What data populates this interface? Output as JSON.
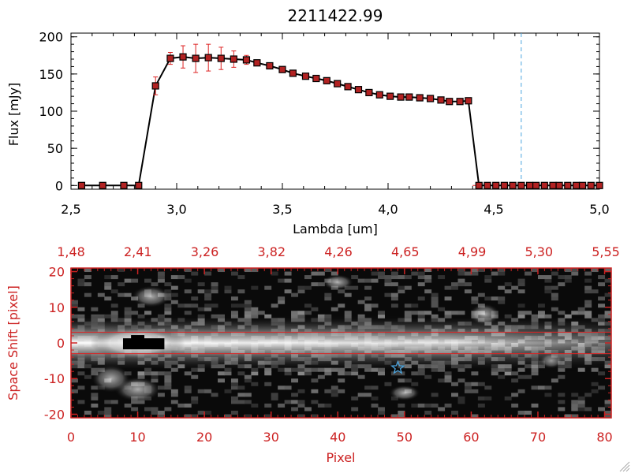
{
  "chart_data": [
    {
      "type": "line",
      "title": "2211422.99",
      "xlabel": "Lambda [um]",
      "ylabel": "Flux [mJy]",
      "xlim": [
        2.5,
        5.0
      ],
      "ylim": [
        -5,
        205
      ],
      "x_ticks": [
        "2.5",
        "3.0",
        "3.5",
        "4.0",
        "4.5",
        "5.0"
      ],
      "y_ticks": [
        "0",
        "50",
        "100",
        "150",
        "200"
      ],
      "grid": false,
      "series_color": "#000000",
      "marker_color": "#b22222",
      "errorbar_color": "#dd2222",
      "vline": {
        "x": 4.63,
        "color": "#4da6e0",
        "style": "dashed"
      },
      "hline": {
        "y": 0,
        "color": "#dd2222",
        "style": "dashed"
      },
      "x": [
        2.55,
        2.65,
        2.75,
        2.82,
        2.9,
        2.97,
        3.03,
        3.09,
        3.15,
        3.21,
        3.27,
        3.33,
        3.38,
        3.44,
        3.5,
        3.55,
        3.61,
        3.66,
        3.71,
        3.76,
        3.81,
        3.86,
        3.91,
        3.96,
        4.01,
        4.06,
        4.1,
        4.15,
        4.2,
        4.25,
        4.29,
        4.34,
        4.38,
        4.43,
        4.47,
        4.51,
        4.55,
        4.59,
        4.63,
        4.67,
        4.7,
        4.74,
        4.78,
        4.81,
        4.85,
        4.89,
        4.92,
        4.96,
        5.0
      ],
      "y": [
        0,
        0,
        0,
        0,
        134,
        171,
        173,
        171,
        172,
        171,
        170,
        169,
        165,
        161,
        156,
        151,
        147,
        144,
        141,
        137,
        133,
        129,
        125,
        122,
        120,
        119,
        119,
        118,
        117,
        115,
        113,
        113,
        114,
        0,
        0,
        0,
        0,
        0,
        0,
        0,
        0,
        0,
        0,
        0,
        0,
        0,
        0,
        0,
        0
      ],
      "yerr": [
        0,
        0,
        0,
        0,
        12,
        8,
        15,
        19,
        18,
        15,
        11,
        6,
        4,
        3,
        2,
        2,
        2,
        2,
        2,
        2,
        2,
        2,
        2,
        2,
        2,
        2,
        2,
        2,
        2,
        2,
        2,
        2,
        2,
        0,
        0,
        0,
        0,
        0,
        0,
        0,
        0,
        0,
        0,
        0,
        0,
        0,
        0,
        0,
        0
      ]
    },
    {
      "type": "heatmap",
      "xlabel": "Pixel",
      "ylabel": "Space Shift [pixel]",
      "xlim": [
        0,
        81
      ],
      "ylim": [
        -21,
        21
      ],
      "x_ticks": [
        "0",
        "10",
        "20",
        "30",
        "40",
        "50",
        "60",
        "70",
        "80"
      ],
      "y_ticks": [
        "20",
        "10",
        "0",
        "-10",
        "-20"
      ],
      "top_ticks": [
        "1.48",
        "2.41",
        "3.26",
        "3.82",
        "4.26",
        "4.65",
        "4.99",
        "5.30",
        "5.55"
      ],
      "axis_color": "#cc2222",
      "colormap": "grayscale",
      "trace_rows": [
        3,
        -3
      ],
      "trace_color": "#dd2222",
      "marker": {
        "x": 49,
        "y": -7,
        "symbol": "star",
        "color": "#4da6e0"
      },
      "bright_trace": {
        "y_center": 0,
        "x_start": 0,
        "x_end": 81,
        "peak_x": 10
      }
    }
  ]
}
